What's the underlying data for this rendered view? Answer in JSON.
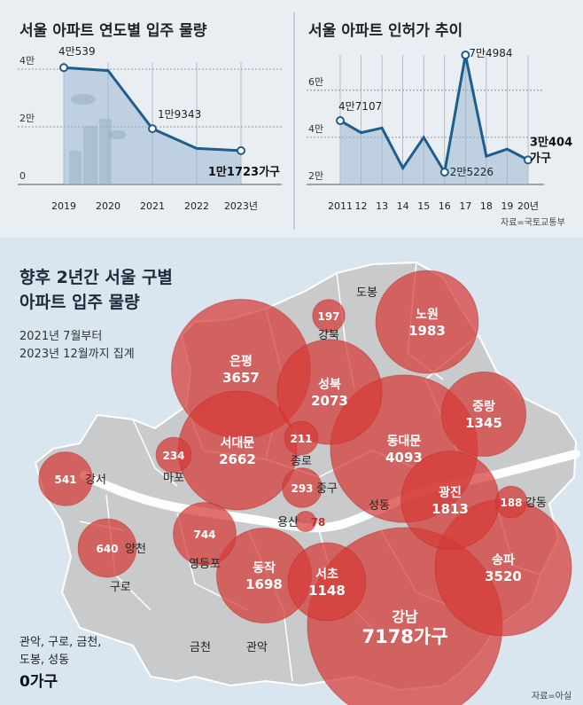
{
  "chart_data": [
    {
      "type": "area",
      "title": "서울 아파트 연도별 입주 물량",
      "categories": [
        "2019",
        "2020",
        "2021",
        "2022",
        "2023년"
      ],
      "values": [
        40539,
        39500,
        19343,
        12500,
        11723
      ],
      "ylim": [
        0,
        40000
      ],
      "yticks": [
        "0",
        "2만",
        "4만"
      ],
      "data_labels": [
        {
          "index": 0,
          "text": "4만539"
        },
        {
          "index": 2,
          "text": "1만9343"
        },
        {
          "index": 4,
          "text": "1만1723가구"
        }
      ],
      "grid": true
    },
    {
      "type": "area",
      "title": "서울 아파트 인허가 추이",
      "categories": [
        "2011",
        "12",
        "13",
        "14",
        "15",
        "16",
        "17",
        "18",
        "19",
        "20년"
      ],
      "values": [
        47107,
        42000,
        44000,
        27000,
        40000,
        25226,
        74984,
        32000,
        35000,
        30404
      ],
      "ylim": [
        20000,
        75000
      ],
      "yticks": [
        "2만",
        "4만",
        "6만"
      ],
      "data_labels": [
        {
          "index": 0,
          "text": "4만7107"
        },
        {
          "index": 5,
          "text": "2만5226"
        },
        {
          "index": 6,
          "text": "7만4984"
        },
        {
          "index": 9,
          "text": "3만404"
        },
        {
          "index": 9,
          "text": "가구"
        }
      ],
      "grid": true,
      "source": "자료=국토교통부"
    },
    {
      "type": "bubble-map",
      "title_line1": "향후 2년간 서울 구별",
      "title_line2": "아파트 입주 물량",
      "subtitle_line1": "2021년 7월부터",
      "subtitle_line2": "2023년 12월까지 집계",
      "districts": [
        {
          "name": "노원",
          "value": 1983
        },
        {
          "name": "강북",
          "value": 197
        },
        {
          "name": "은평",
          "value": 3657
        },
        {
          "name": "성북",
          "value": 2073
        },
        {
          "name": "중랑",
          "value": 1345
        },
        {
          "name": "서대문",
          "value": 2662
        },
        {
          "name": "종로",
          "value": 211
        },
        {
          "name": "동대문",
          "value": 4093
        },
        {
          "name": "마포",
          "value": 234
        },
        {
          "name": "강서",
          "value": 541
        },
        {
          "name": "중구",
          "value": 293
        },
        {
          "name": "광진",
          "value": 1813
        },
        {
          "name": "강동",
          "value": 188
        },
        {
          "name": "용산",
          "value": 78
        },
        {
          "name": "양천",
          "value": 640
        },
        {
          "name": "영등포",
          "value": 744
        },
        {
          "name": "송파",
          "value": 3520
        },
        {
          "name": "동작",
          "value": 1698
        },
        {
          "name": "서초",
          "value": 1148
        },
        {
          "name": "강남",
          "value": 7178,
          "value_label": "7178가구"
        }
      ],
      "plain_labels": [
        "도봉",
        "성동",
        "구로",
        "금천",
        "관악"
      ],
      "zero_note_line1": "관악, 구로, 금천,",
      "zero_note_line2": "도봉, 성동",
      "zero_value": "0가구",
      "source": "자료=아실"
    }
  ]
}
